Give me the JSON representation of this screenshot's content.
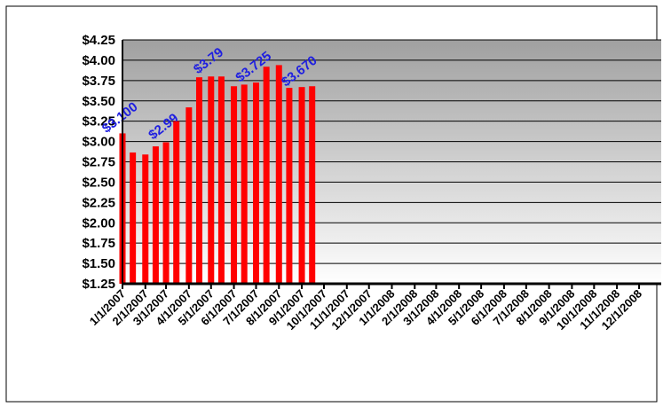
{
  "chart_data": {
    "type": "bar",
    "x": [
      "1/1/2007",
      "1/15/2007",
      "2/1/2007",
      "2/15/2007",
      "3/1/2007",
      "3/15/2007",
      "4/1/2007",
      "4/15/2007",
      "5/1/2007",
      "5/15/2007",
      "6/1/2007",
      "6/15/2007",
      "7/1/2007",
      "7/15/2007",
      "8/1/2007",
      "8/15/2007",
      "9/1/2007",
      "9/15/2007"
    ],
    "values": [
      3.1,
      2.865,
      2.84,
      2.94,
      2.99,
      3.25,
      3.42,
      3.79,
      3.8,
      3.8,
      3.68,
      3.7,
      3.725,
      3.92,
      3.94,
      3.66,
      3.67,
      3.68
    ],
    "value_labels": [
      "$3.100",
      null,
      null,
      null,
      "$2.99",
      null,
      null,
      null,
      "$3.79",
      null,
      null,
      null,
      "$3.725",
      null,
      null,
      null,
      "$3.670",
      null
    ],
    "color": "#ff0000",
    "label_color": "#1f1fe0",
    "ylim": [
      1.25,
      4.25
    ],
    "yticks": [
      {
        "value": 1.25,
        "label": "$1.25"
      },
      {
        "value": 1.5,
        "label": "$1.50"
      },
      {
        "value": 1.75,
        "label": "$1.75"
      },
      {
        "value": 2.0,
        "label": "$2.00"
      },
      {
        "value": 2.25,
        "label": "$2.25"
      },
      {
        "value": 2.5,
        "label": "$2.50"
      },
      {
        "value": 2.75,
        "label": "$2.75"
      },
      {
        "value": 3.0,
        "label": "$3.00"
      },
      {
        "value": 3.25,
        "label": "$3.25"
      },
      {
        "value": 3.5,
        "label": "$3.50"
      },
      {
        "value": 3.75,
        "label": "$3.75"
      },
      {
        "value": 4.0,
        "label": "$4.00"
      },
      {
        "value": 4.25,
        "label": "$4.25"
      }
    ],
    "xlim": [
      "1/1/2007",
      "12/31/2008"
    ],
    "xticks": [
      "1/1/2007",
      "2/1/2007",
      "3/1/2007",
      "4/1/2007",
      "5/1/2007",
      "6/1/2007",
      "7/1/2007",
      "8/1/2007",
      "9/1/2007",
      "10/1/2007",
      "11/1/2007",
      "12/1/2007",
      "1/1/2008",
      "2/1/2008",
      "3/1/2008",
      "4/1/2008",
      "5/1/2008",
      "6/1/2008",
      "7/1/2008",
      "8/1/2008",
      "9/1/2008",
      "10/1/2008",
      "11/1/2008",
      "12/1/2008"
    ],
    "grid": true
  }
}
